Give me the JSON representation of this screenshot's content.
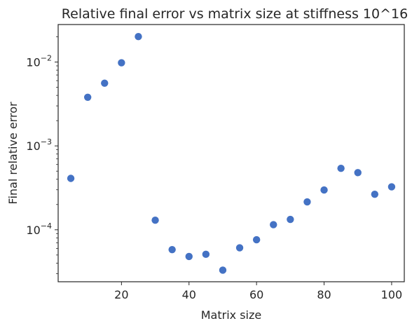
{
  "chart_data": {
    "type": "scatter",
    "title": "Relative final error vs matrix size at stiffness 10^16",
    "xlabel": "Matrix size",
    "ylabel": "Final relative error",
    "x_scale": "linear",
    "y_scale": "log",
    "xlim": [
      1.25,
      103.75
    ],
    "ylim": [
      2.4e-05,
      0.028
    ],
    "x_ticks": [
      {
        "value": 20,
        "label": "20"
      },
      {
        "value": 40,
        "label": "40"
      },
      {
        "value": 60,
        "label": "60"
      },
      {
        "value": 80,
        "label": "80"
      },
      {
        "value": 100,
        "label": "100"
      }
    ],
    "y_ticks": [
      {
        "value": 0.0001,
        "base": "10",
        "exp": "−4"
      },
      {
        "value": 0.001,
        "base": "10",
        "exp": "−3"
      },
      {
        "value": 0.01,
        "base": "10",
        "exp": "−2"
      }
    ],
    "grid": false,
    "marker_color": "#4472c4",
    "x": [
      5,
      10,
      15,
      20,
      25,
      30,
      35,
      40,
      45,
      50,
      55,
      60,
      65,
      70,
      75,
      80,
      85,
      90,
      95,
      100
    ],
    "y": [
      0.00041,
      0.0038,
      0.0056,
      0.0098,
      0.0201,
      0.00013,
      5.8e-05,
      4.8e-05,
      5.1e-05,
      3.3e-05,
      6.1e-05,
      7.6e-05,
      0.000115,
      0.000133,
      0.000215,
      0.000298,
      0.00054,
      0.00048,
      0.000265,
      0.000325
    ]
  }
}
